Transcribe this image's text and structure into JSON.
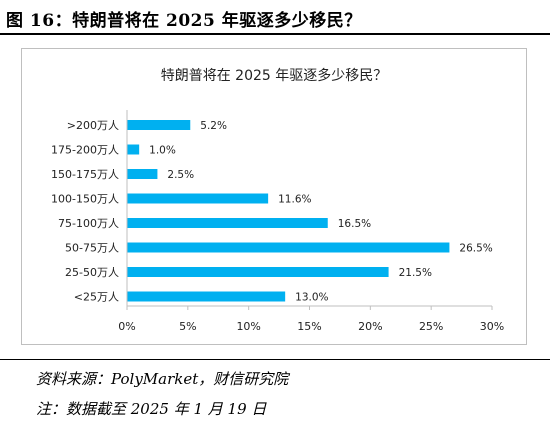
{
  "figure": {
    "title": "图 16：特朗普将在 2025 年驱逐多少移民？"
  },
  "chart_data": {
    "type": "bar",
    "orientation": "horizontal",
    "title": "特朗普将在 2025 年驱逐多少移民？",
    "categories": [
      ">200万人",
      "175-200万人",
      "150-175万人",
      "100-150万人",
      "75-100万人",
      "50-75万人",
      "25-50万人",
      "<25万人"
    ],
    "values": [
      5.2,
      1.0,
      2.5,
      11.6,
      16.5,
      26.5,
      21.5,
      13.0
    ],
    "data_labels": [
      "5.2%",
      "1.0%",
      "2.5%",
      "11.6%",
      "16.5%",
      "26.5%",
      "21.5%",
      "13.0%"
    ],
    "xlim": [
      0,
      30
    ],
    "xticks": [
      0,
      5,
      10,
      15,
      20,
      25,
      30
    ],
    "xtick_labels": [
      "0%",
      "5%",
      "10%",
      "15%",
      "20%",
      "25%",
      "30%"
    ],
    "xlabel": "",
    "ylabel": "",
    "grid": false,
    "bar_color": "#00B0F0"
  },
  "notes": {
    "source": "资料来源：PolyMarket，财信研究院",
    "date": "注：数据截至 2025 年 1 月 19 日"
  }
}
